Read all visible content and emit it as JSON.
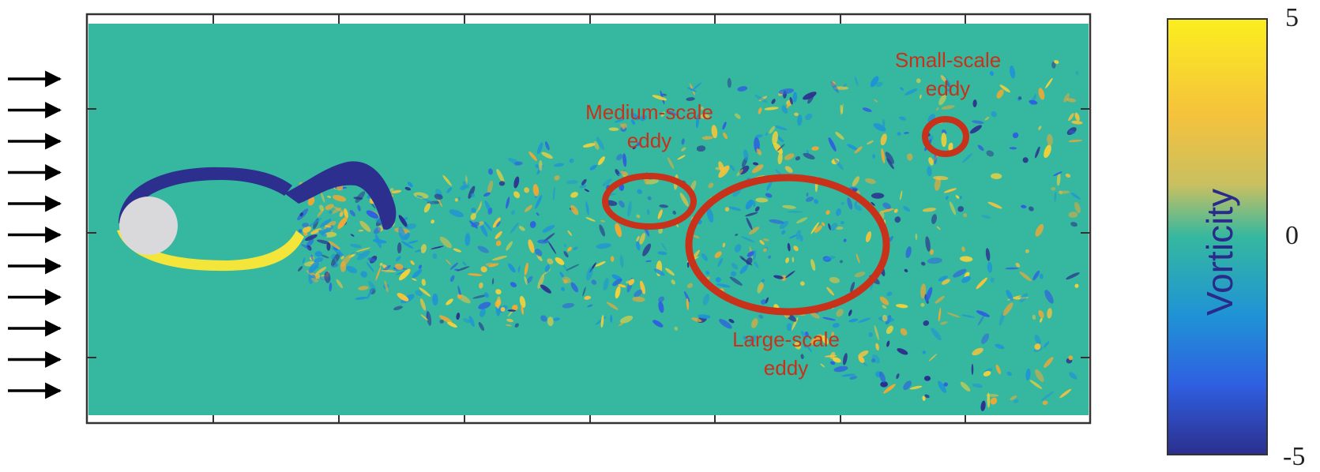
{
  "annotations": {
    "small": [
      "Small-scale",
      "eddy"
    ],
    "medium": [
      "Medium-scale",
      "eddy"
    ],
    "large": [
      "Large-scale",
      "eddy"
    ]
  },
  "colorbar": {
    "label": "Vorticity",
    "max": "5",
    "mid": "0",
    "min": "-5",
    "colors": [
      "#fbee1f",
      "#f5c23c",
      "#f3a833",
      "#35b89f",
      "#1f93d6",
      "#2f5fe1",
      "#2c2f8e"
    ]
  },
  "field": {
    "background": "#35b89f",
    "cylinder_color": "#d9d9dc",
    "positive_color": "#f3d13a",
    "negative_color": "#2c2f8e",
    "annotation_color": "#c8311a"
  },
  "inflow_arrows": 11
}
